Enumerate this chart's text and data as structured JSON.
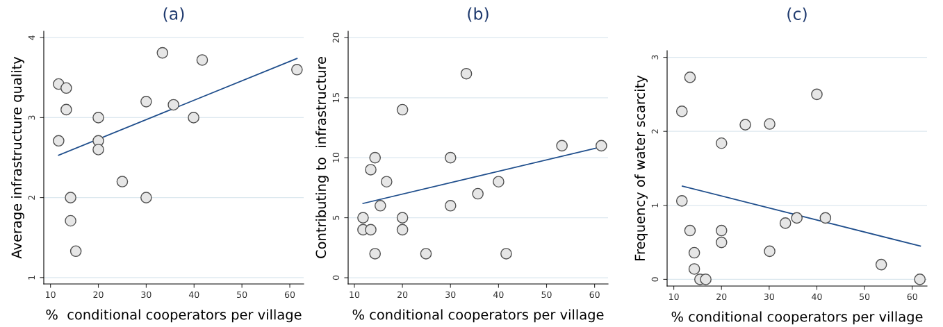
{
  "chart_data": [
    {
      "type": "scatter",
      "title": "(a)",
      "xlabel": "%  conditional cooperators per village",
      "ylabel": "Average infrastructure quality",
      "xlim": [
        8.6,
        62.9
      ],
      "xticks": [
        10,
        20,
        30,
        40,
        50,
        60
      ],
      "ylim": [
        0.92,
        4.08
      ],
      "yticks": [
        1,
        2,
        3,
        4
      ],
      "grid": "y",
      "series": [
        {
          "marker": "circle",
          "color": "#e6e6e6",
          "x": [
            11.7,
            13.3,
            13.3,
            11.7,
            20,
            20,
            20,
            14.2,
            14.2,
            15.3,
            25,
            30,
            30,
            33.4,
            35.7,
            39.9,
            41.7,
            61.5
          ],
          "values": [
            3.42,
            3.37,
            3.1,
            2.71,
            3.0,
            2.71,
            2.6,
            2.0,
            1.71,
            1.33,
            2.2,
            3.2,
            2.0,
            3.81,
            3.16,
            3.0,
            3.72,
            3.6
          ]
        },
        {
          "type": "line",
          "color": "#1f4e8c",
          "x": [
            11.7,
            61.5
          ],
          "values": [
            2.53,
            3.74
          ]
        }
      ]
    },
    {
      "type": "scatter",
      "title": "(b)",
      "xlabel": "% conditional cooperators per village",
      "ylabel": "Contributing to  infrastructure",
      "xlim": [
        8.7,
        62.8
      ],
      "xticks": [
        10,
        20,
        30,
        40,
        50,
        60
      ],
      "ylim": [
        -0.52,
        20.54
      ],
      "yticks": [
        0,
        5,
        10,
        15,
        20
      ],
      "grid": "y",
      "series": [
        {
          "marker": "circle",
          "color": "#e6e6e6",
          "x": [
            11.8,
            11.8,
            13.4,
            13.4,
            14.3,
            14.3,
            15.4,
            16.7,
            20,
            20,
            20,
            24.9,
            30,
            30,
            33.3,
            35.7,
            40,
            41.6,
            53.2,
            61.4
          ],
          "values": [
            5,
            4,
            4,
            9,
            10,
            2,
            6,
            8,
            14,
            5,
            4,
            2,
            10,
            6,
            17,
            7,
            8,
            2,
            11,
            11
          ]
        },
        {
          "type": "line",
          "color": "#1f4e8c",
          "x": [
            11.8,
            61.4
          ],
          "values": [
            6.19,
            10.9
          ]
        }
      ]
    },
    {
      "type": "scatter",
      "title": "(c)",
      "xlabel": "% conditional cooperators per village",
      "ylabel": "Frequency of water scarcity",
      "xlim": [
        8.6,
        63.1
      ],
      "xticks": [
        10,
        20,
        30,
        40,
        50,
        60
      ],
      "ylim": [
        -0.09,
        3.09
      ],
      "yticks": [
        0,
        1,
        2,
        3
      ],
      "grid": "y",
      "series": [
        {
          "marker": "circle",
          "color": "#e6e6e6",
          "x": [
            11.7,
            13.4,
            11.7,
            13.4,
            14.3,
            14.3,
            15.5,
            16.7,
            20,
            20,
            20,
            25,
            30.1,
            30.1,
            33.4,
            35.8,
            40,
            41.8,
            53.5,
            61.6
          ],
          "values": [
            2.27,
            2.73,
            1.06,
            0.66,
            0.36,
            0.14,
            0,
            0,
            1.84,
            0.66,
            0.5,
            2.09,
            2.1,
            0.38,
            0.76,
            0.83,
            2.5,
            0.83,
            0.2,
            0
          ]
        },
        {
          "type": "line",
          "color": "#1f4e8c",
          "x": [
            11.8,
            61.7
          ],
          "values": [
            1.26,
            0.45
          ]
        }
      ]
    }
  ]
}
